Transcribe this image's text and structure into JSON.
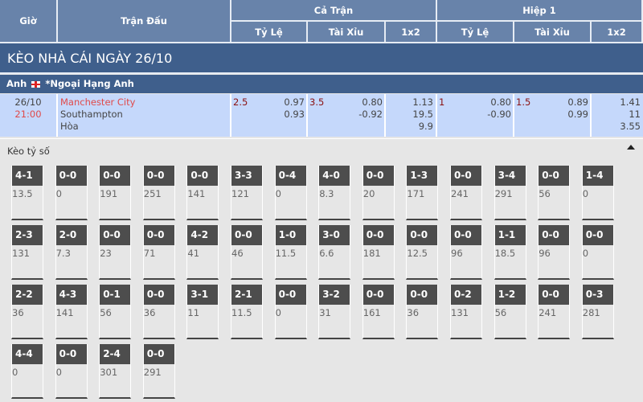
{
  "header": {
    "gio": "Giờ",
    "tran_dau": "Trận Đấu",
    "ca_tran": "Cả Trận",
    "hiep1": "Hiệp 1",
    "ty_le": "Tỷ Lệ",
    "tai_xiu": "Tài Xỉu",
    "x12": "1x2"
  },
  "title": "KÈO NHÀ CÁI NGÀY 26/10",
  "league": {
    "country": "Anh",
    "name": "*Ngoại Hạng Anh"
  },
  "match": {
    "date": "26/10",
    "time": "21:00",
    "home": "Manchester City",
    "away": "Southampton",
    "draw": "Hòa",
    "ft_hdp": {
      "line": "2.5",
      "home": "0.97",
      "away": "0.93"
    },
    "ft_ou": {
      "line": "3.5",
      "over": "0.80",
      "under": "-0.92"
    },
    "ft_1x2": {
      "home": "1.13",
      "away": "19.5",
      "draw": "9.9"
    },
    "h1_hdp": {
      "line": "1",
      "home": "0.80",
      "away": "-0.90"
    },
    "h1_ou": {
      "line": "1.5",
      "over": "0.89",
      "under": "0.99"
    },
    "h1_1x2": {
      "home": "1.41",
      "away": "11",
      "draw": "3.55"
    }
  },
  "section_label": "Kèo tỷ số",
  "scores": [
    [
      [
        "4-1",
        "13.5"
      ],
      [
        "0-0",
        "0"
      ],
      [
        "0-0",
        "191"
      ],
      [
        "0-0",
        "251"
      ],
      [
        "0-0",
        "141"
      ],
      [
        "3-3",
        "121"
      ],
      [
        "0-4",
        "0"
      ],
      [
        "4-0",
        "8.3"
      ],
      [
        "0-0",
        "20"
      ],
      [
        "1-3",
        "171"
      ],
      [
        "0-0",
        "241"
      ],
      [
        "3-4",
        "291"
      ],
      [
        "0-0",
        "56"
      ],
      [
        "1-4",
        "0"
      ]
    ],
    [
      [
        "2-3",
        "131"
      ],
      [
        "2-0",
        "7.3"
      ],
      [
        "0-0",
        "23"
      ],
      [
        "0-0",
        "71"
      ],
      [
        "4-2",
        "41"
      ],
      [
        "0-0",
        "46"
      ],
      [
        "1-0",
        "11.5"
      ],
      [
        "3-0",
        "6.6"
      ],
      [
        "0-0",
        "181"
      ],
      [
        "0-0",
        "12.5"
      ],
      [
        "0-0",
        "96"
      ],
      [
        "1-1",
        "18.5"
      ],
      [
        "0-0",
        "96"
      ],
      [
        "0-0",
        "0"
      ]
    ],
    [
      [
        "2-2",
        "36"
      ],
      [
        "4-3",
        "141"
      ],
      [
        "0-1",
        "56"
      ],
      [
        "0-0",
        "36"
      ],
      [
        "3-1",
        "11"
      ],
      [
        "2-1",
        "11.5"
      ],
      [
        "0-0",
        "0"
      ],
      [
        "3-2",
        "31"
      ],
      [
        "0-0",
        "161"
      ],
      [
        "0-0",
        "36"
      ],
      [
        "0-2",
        "131"
      ],
      [
        "1-2",
        "56"
      ],
      [
        "0-0",
        "241"
      ],
      [
        "0-3",
        "281"
      ]
    ],
    [
      [
        "4-4",
        "0"
      ],
      [
        "0-0",
        "0"
      ],
      [
        "2-4",
        "301"
      ],
      [
        "0-0",
        "291"
      ]
    ]
  ],
  "colors": {
    "header": "#6883aa",
    "band": "#3f5f8c",
    "row": "#c5d8fb",
    "card_header": "#4d4d4d"
  }
}
